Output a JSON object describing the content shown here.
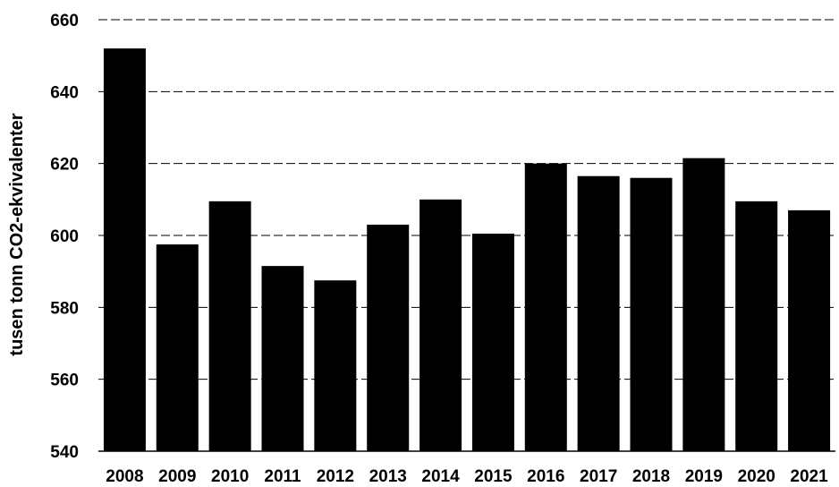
{
  "chart_data": {
    "type": "bar",
    "title": "",
    "xlabel": "",
    "ylabel": "tusen tonn CO2-ekvivalenter",
    "categories": [
      "2008",
      "2009",
      "2010",
      "2011",
      "2012",
      "2013",
      "2014",
      "2015",
      "2016",
      "2017",
      "2018",
      "2019",
      "2020",
      "2021"
    ],
    "values": [
      652,
      597.5,
      609.5,
      591.5,
      587.5,
      603,
      610,
      600.5,
      620,
      616.5,
      616,
      621.5,
      609.5,
      607
    ],
    "ylim": [
      540,
      660
    ],
    "yticks": [
      "540",
      "560",
      "580",
      "600",
      "620",
      "640",
      "660"
    ],
    "grid": true,
    "colors": {
      "bar": "#000000",
      "grid": "#000000"
    }
  }
}
